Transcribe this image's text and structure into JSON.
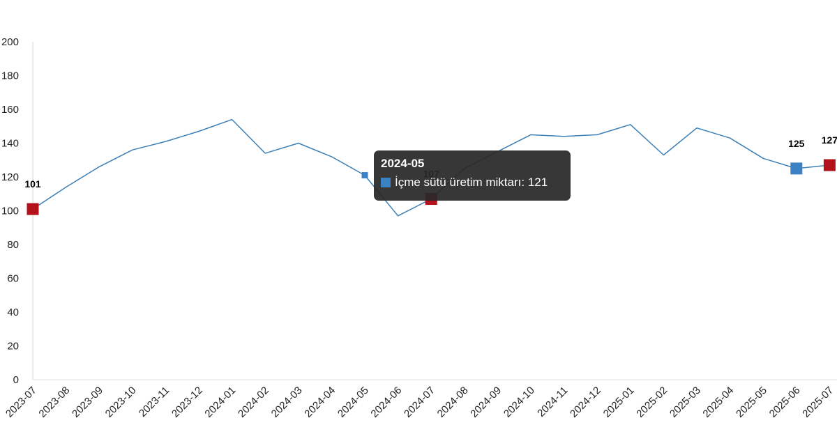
{
  "chart_data": {
    "type": "line",
    "x": [
      "2023-07",
      "2023-08",
      "2023-09",
      "2023-10",
      "2023-11",
      "2023-12",
      "2024-01",
      "2024-02",
      "2024-03",
      "2024-04",
      "2024-05",
      "2024-06",
      "2024-07",
      "2024-08",
      "2024-09",
      "2024-10",
      "2024-11",
      "2024-12",
      "2025-01",
      "2025-02",
      "2025-03",
      "2025-04",
      "2025-05",
      "2025-06",
      "2025-07"
    ],
    "series": [
      {
        "name": "İçme sütü üretim miktarı",
        "values": [
          101,
          114,
          126,
          136,
          141,
          147,
          154,
          134,
          140,
          132,
          121,
          97,
          107,
          125,
          135,
          145,
          144,
          145,
          151,
          133,
          149,
          143,
          131,
          125,
          127
        ]
      }
    ],
    "y_ticks": [
      "0",
      "20",
      "40",
      "60",
      "80",
      "100",
      "120",
      "140",
      "160",
      "180",
      "200"
    ],
    "ylim": [
      0,
      200
    ],
    "grid": false,
    "line_color": "#3b7fb6",
    "highlights": [
      {
        "index": 0,
        "label": "101",
        "color": "#b3121b"
      },
      {
        "index": 12,
        "label": "107",
        "color": "#b3121b"
      },
      {
        "index": 23,
        "label": "125",
        "color": "#3b82c4"
      },
      {
        "index": 24,
        "label": "127",
        "color": "#b3121b"
      }
    ],
    "hover_index": 10,
    "tooltip": {
      "title": "2024-05",
      "series_label": "İçme sütü üretim miktarı",
      "value": "121",
      "swatch_color": "#3b82c4"
    }
  }
}
